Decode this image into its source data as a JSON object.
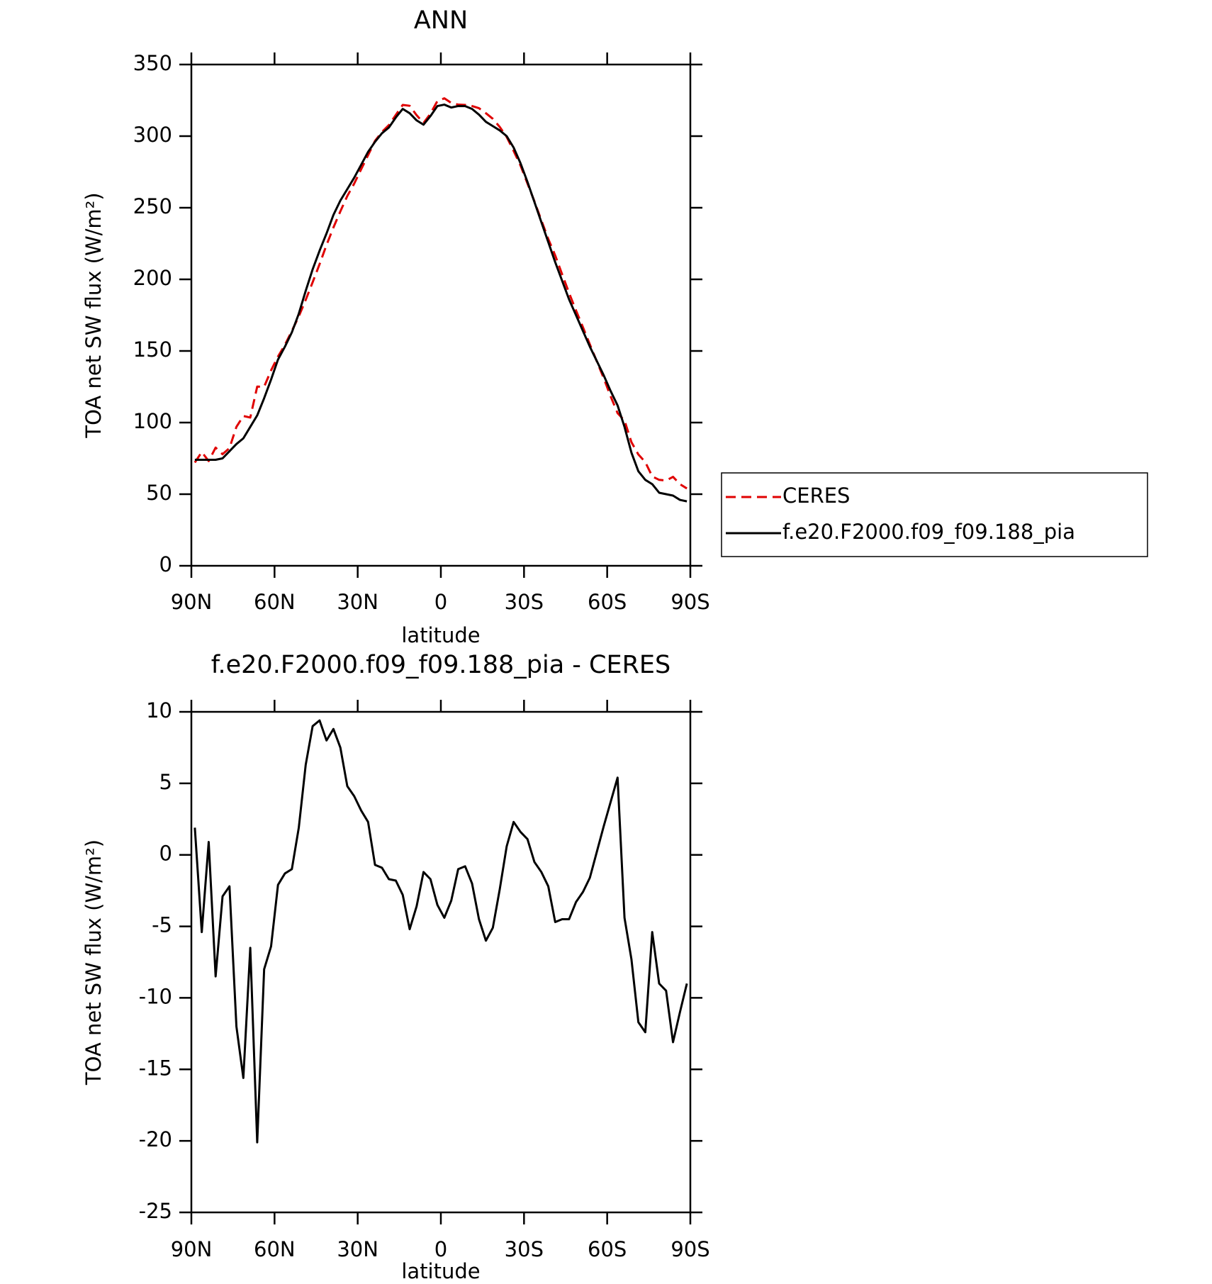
{
  "chart_data": [
    {
      "type": "line",
      "title": "ANN",
      "xlabel": "latitude",
      "ylabel": "TOA net SW flux (W/m²)",
      "x": [
        88.75,
        86.25,
        83.75,
        81.25,
        78.75,
        76.25,
        73.75,
        71.25,
        68.75,
        66.25,
        63.75,
        61.25,
        58.75,
        56.25,
        53.75,
        51.25,
        48.75,
        46.25,
        43.75,
        41.25,
        38.75,
        36.25,
        33.75,
        31.25,
        28.75,
        26.25,
        23.75,
        21.25,
        18.75,
        16.25,
        13.75,
        11.25,
        8.75,
        6.25,
        3.75,
        1.25,
        -1.25,
        -3.75,
        -6.25,
        -8.75,
        -11.25,
        -13.75,
        -16.25,
        -18.75,
        -21.25,
        -23.75,
        -26.25,
        -28.75,
        -31.25,
        -33.75,
        -36.25,
        -38.75,
        -41.25,
        -43.75,
        -46.25,
        -48.75,
        -51.25,
        -53.75,
        -56.25,
        -58.75,
        -61.25,
        -63.75,
        -66.25,
        -68.75,
        -71.25,
        -73.75,
        -76.25,
        -78.75,
        -81.25,
        -83.75,
        -86.25,
        -88.75
      ],
      "series": [
        {
          "name": "CERES",
          "color": "#e00000",
          "linestyle": "dashed",
          "values": [
            72.1,
            79.4,
            73.1,
            82.5,
            77.9,
            82.2,
            97,
            104.6,
            103.5,
            125.1,
            125,
            136.4,
            146.1,
            154.3,
            164,
            174.1,
            185.7,
            198,
            210.6,
            224,
            236.2,
            247.5,
            258.2,
            266.9,
            276.9,
            286.7,
            296.7,
            302.9,
            307.7,
            314.8,
            321.8,
            321.2,
            314.6,
            309.2,
            315.7,
            324.5,
            326.4,
            323.2,
            322,
            321.8,
            321,
            319.5,
            316,
            312.1,
            306.4,
            299.4,
            289.7,
            279.4,
            266.9,
            254.5,
            241.2,
            228.2,
            216.7,
            203.5,
            190.5,
            178.3,
            166.6,
            154.6,
            142.8,
            131,
            118.3,
            106.6,
            101.4,
            86.3,
            77.7,
            72.4,
            62.4,
            60,
            59.5,
            62.1,
            57,
            54
          ]
        },
        {
          "name": "f.e20.F2000.f09_f09.188_pia",
          "color": "#000000",
          "linestyle": "solid",
          "values": [
            74,
            74,
            74,
            74,
            75,
            80,
            85,
            89,
            97,
            105,
            117,
            130,
            144,
            153,
            163,
            176,
            192,
            207,
            220,
            232,
            245,
            255,
            263,
            271,
            280,
            289,
            296,
            302,
            306,
            313,
            319,
            316,
            311,
            308,
            314,
            321,
            322,
            320,
            321,
            321,
            319,
            315,
            310,
            307,
            304,
            300,
            292,
            281,
            268,
            254,
            240,
            226,
            212,
            199,
            186,
            175,
            164,
            153,
            143,
            133,
            122,
            112,
            97,
            79,
            66,
            60,
            57,
            51,
            50,
            49,
            46,
            45
          ]
        }
      ],
      "xlim": [
        90,
        -90
      ],
      "xticks": [
        {
          "value": 90,
          "label": "90N"
        },
        {
          "value": 60,
          "label": "60N"
        },
        {
          "value": 30,
          "label": "30N"
        },
        0,
        {
          "value": -30,
          "label": "30S"
        },
        {
          "value": -60,
          "label": "60S"
        },
        {
          "value": -90,
          "label": "90S"
        }
      ],
      "ylim": [
        0,
        350
      ],
      "yticks": [
        0,
        50,
        100,
        150,
        200,
        250,
        300,
        350
      ],
      "legend": "outside right"
    },
    {
      "type": "line",
      "title": "f.e20.F2000.f09_f09.188_pia - CERES",
      "xlabel": "latitude",
      "ylabel": "TOA net SW flux (W/m²)",
      "x": [
        88.75,
        86.25,
        83.75,
        81.25,
        78.75,
        76.25,
        73.75,
        71.25,
        68.75,
        66.25,
        63.75,
        61.25,
        58.75,
        56.25,
        53.75,
        51.25,
        48.75,
        46.25,
        43.75,
        41.25,
        38.75,
        36.25,
        33.75,
        31.25,
        28.75,
        26.25,
        23.75,
        21.25,
        18.75,
        16.25,
        13.75,
        11.25,
        8.75,
        6.25,
        3.75,
        1.25,
        -1.25,
        -3.75,
        -6.25,
        -8.75,
        -11.25,
        -13.75,
        -16.25,
        -18.75,
        -21.25,
        -23.75,
        -26.25,
        -28.75,
        -31.25,
        -33.75,
        -36.25,
        -38.75,
        -41.25,
        -43.75,
        -46.25,
        -48.75,
        -51.25,
        -53.75,
        -56.25,
        -58.75,
        -61.25,
        -63.75,
        -66.25,
        -68.75,
        -71.25,
        -73.75,
        -76.25,
        -78.75,
        -81.25,
        -83.75,
        -86.25,
        -88.75
      ],
      "series": [
        {
          "color": "#000000",
          "linestyle": "solid",
          "values": [
            1.9,
            -5.4,
            0.9,
            -8.5,
            -2.9,
            -2.2,
            -12,
            -15.6,
            -6.5,
            -20.1,
            -8,
            -6.4,
            -2.1,
            -1.3,
            -1.0,
            1.9,
            6.3,
            9.0,
            9.4,
            8.0,
            8.8,
            7.5,
            4.8,
            4.1,
            3.1,
            2.3,
            -0.7,
            -0.9,
            -1.7,
            -1.8,
            -2.8,
            -5.2,
            -3.6,
            -1.2,
            -1.7,
            -3.5,
            -4.4,
            -3.2,
            -1.0,
            -0.8,
            -2.0,
            -4.5,
            -6.0,
            -5.1,
            -2.4,
            0.6,
            2.3,
            1.6,
            1.1,
            -0.5,
            -1.2,
            -2.2,
            -4.7,
            -4.5,
            -4.5,
            -3.3,
            -2.6,
            -1.6,
            0.2,
            2.0,
            3.7,
            5.4,
            -4.4,
            -7.3,
            -11.7,
            -12.4,
            -5.4,
            -9.0,
            -9.5,
            -13.1,
            -11.0,
            -9.0
          ]
        }
      ],
      "xlim": [
        90,
        -90
      ],
      "xticks": [
        {
          "value": 90,
          "label": "90N"
        },
        {
          "value": 60,
          "label": "60N"
        },
        {
          "value": 30,
          "label": "30N"
        },
        0,
        {
          "value": -30,
          "label": "30S"
        },
        {
          "value": -60,
          "label": "60S"
        },
        {
          "value": -90,
          "label": "90S"
        }
      ],
      "ylim": [
        -25,
        10
      ],
      "yticks": [
        -25,
        -20,
        -15,
        -10,
        -5,
        0,
        5,
        10
      ]
    }
  ]
}
